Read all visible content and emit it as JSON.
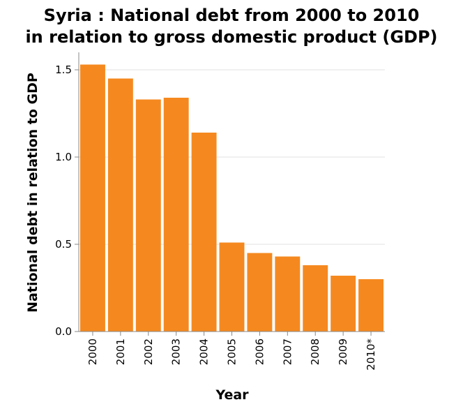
{
  "chart_data": {
    "type": "bar",
    "title_lines": [
      "Syria : National debt from 2000 to 2010",
      "in relation to gross domestic product (GDP)"
    ],
    "xlabel": "Year",
    "ylabel": "National debt in relation to GDP",
    "categories": [
      "2000",
      "2001",
      "2002",
      "2003",
      "2004",
      "2005",
      "2006",
      "2007",
      "2008",
      "2009",
      "2010*"
    ],
    "values": [
      1.53,
      1.45,
      1.33,
      1.34,
      1.14,
      0.51,
      0.45,
      0.43,
      0.38,
      0.32,
      0.3
    ],
    "ylim": [
      0,
      1.5
    ],
    "yticks": [
      "0.0",
      "0.5",
      "1.0",
      "1.5"
    ],
    "grid": true,
    "bar_color": "#f5891f"
  }
}
